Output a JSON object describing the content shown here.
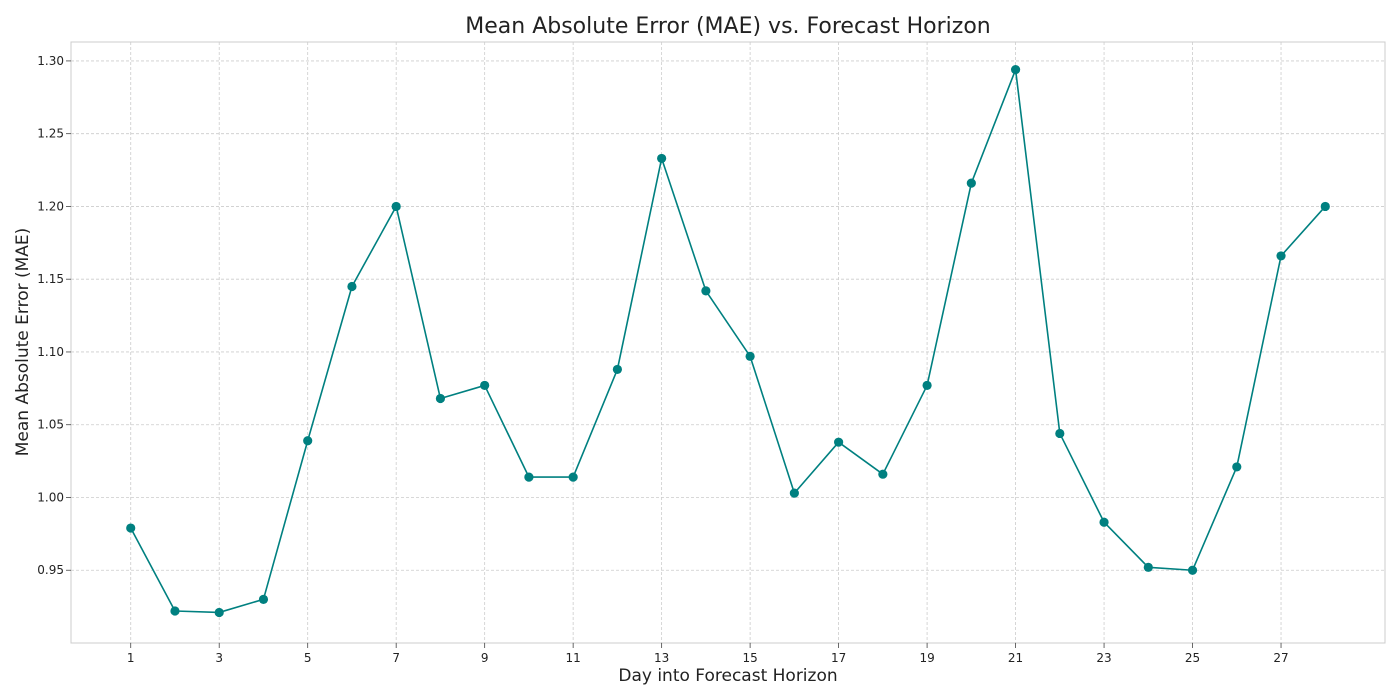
{
  "chart_data": {
    "type": "line",
    "title": "Mean Absolute Error (MAE) vs. Forecast Horizon",
    "xlabel": "Day into Forecast Horizon",
    "ylabel": "Mean Absolute Error (MAE)",
    "xlim": [
      -0.35,
      29.35
    ],
    "ylim": [
      0.9,
      1.313
    ],
    "xticks": [
      1,
      3,
      5,
      7,
      9,
      11,
      13,
      15,
      17,
      19,
      21,
      23,
      25,
      27
    ],
    "yticks": [
      0.95,
      1.0,
      1.05,
      1.1,
      1.15,
      1.2,
      1.25,
      1.3
    ],
    "ytick_labels": [
      "0.95",
      "1.00",
      "1.05",
      "1.10",
      "1.15",
      "1.20",
      "1.25",
      "1.30"
    ],
    "grid": true,
    "color": "#008080",
    "series": [
      {
        "name": "MAE",
        "x": [
          1,
          2,
          3,
          4,
          5,
          6,
          7,
          8,
          9,
          10,
          11,
          12,
          13,
          14,
          15,
          16,
          17,
          18,
          19,
          20,
          21,
          22,
          23,
          24,
          25,
          26,
          27,
          28
        ],
        "values": [
          0.979,
          0.922,
          0.921,
          0.93,
          1.039,
          1.145,
          1.2,
          1.068,
          1.077,
          1.014,
          1.014,
          1.088,
          1.233,
          1.142,
          1.097,
          1.003,
          1.038,
          1.016,
          1.077,
          1.216,
          1.294,
          1.044,
          0.983,
          0.952,
          0.95,
          1.021,
          1.166,
          1.2
        ]
      }
    ]
  }
}
